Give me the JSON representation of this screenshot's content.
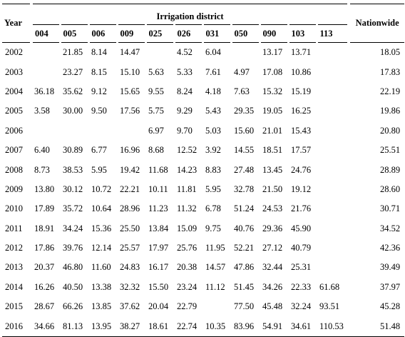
{
  "table": {
    "year_header": "Year",
    "group_header": "Irrigation district",
    "nationwide_header": "Nationwide",
    "district_headers": [
      "004",
      "005",
      "006",
      "009",
      "025",
      "026",
      "031",
      "050",
      "090",
      "103",
      "113"
    ],
    "rows": [
      {
        "year": "2002",
        "values": [
          "",
          "21.85",
          "8.14",
          "14.47",
          "",
          "4.52",
          "6.04",
          "",
          "13.17",
          "13.71",
          ""
        ],
        "nationwide": "18.05"
      },
      {
        "year": "2003",
        "values": [
          "",
          "23.27",
          "8.15",
          "15.10",
          "5.63",
          "5.33",
          "7.61",
          "4.97",
          "17.08",
          "10.86",
          ""
        ],
        "nationwide": "17.83"
      },
      {
        "year": "2004",
        "values": [
          "36.18",
          "35.62",
          "9.12",
          "15.65",
          "9.55",
          "8.24",
          "4.18",
          "7.63",
          "15.32",
          "15.19",
          ""
        ],
        "nationwide": "22.19"
      },
      {
        "year": "2005",
        "values": [
          "3.58",
          "30.00",
          "9.50",
          "17.56",
          "5.75",
          "9.29",
          "5.43",
          "29.35",
          "19.05",
          "16.25",
          ""
        ],
        "nationwide": "19.86"
      },
      {
        "year": "2006",
        "values": [
          "",
          "",
          "",
          "",
          "6.97",
          "9.70",
          "5.03",
          "15.60",
          "21.01",
          "15.43",
          ""
        ],
        "nationwide": "20.80"
      },
      {
        "year": "2007",
        "values": [
          "6.40",
          "30.89",
          "6.77",
          "16.96",
          "8.68",
          "12.52",
          "3.92",
          "14.55",
          "18.51",
          "17.57",
          ""
        ],
        "nationwide": "25.51"
      },
      {
        "year": "2008",
        "values": [
          "8.73",
          "38.53",
          "5.95",
          "19.42",
          "11.68",
          "14.23",
          "8.83",
          "27.48",
          "13.45",
          "24.76",
          ""
        ],
        "nationwide": "28.89"
      },
      {
        "year": "2009",
        "values": [
          "13.80",
          "30.12",
          "10.72",
          "22.21",
          "10.11",
          "11.81",
          "5.95",
          "32.78",
          "21.50",
          "19.12",
          ""
        ],
        "nationwide": "28.60"
      },
      {
        "year": "2010",
        "values": [
          "17.89",
          "35.72",
          "10.64",
          "28.96",
          "11.23",
          "11.32",
          "6.78",
          "51.24",
          "24.53",
          "21.76",
          ""
        ],
        "nationwide": "30.71"
      },
      {
        "year": "2011",
        "values": [
          "18.91",
          "34.24",
          "15.36",
          "25.50",
          "13.84",
          "15.09",
          "9.75",
          "40.76",
          "29.36",
          "45.90",
          ""
        ],
        "nationwide": "34.52"
      },
      {
        "year": "2012",
        "values": [
          "17.86",
          "39.76",
          "12.14",
          "25.57",
          "17.97",
          "25.76",
          "11.95",
          "52.21",
          "27.12",
          "40.79",
          ""
        ],
        "nationwide": "42.36"
      },
      {
        "year": "2013",
        "values": [
          "20.37",
          "46.80",
          "11.60",
          "24.83",
          "16.17",
          "20.38",
          "14.57",
          "47.86",
          "32.44",
          "25.31",
          ""
        ],
        "nationwide": "39.49"
      },
      {
        "year": "2014",
        "values": [
          "16.26",
          "40.50",
          "13.38",
          "32.32",
          "15.50",
          "23.24",
          "11.12",
          "51.45",
          "34.26",
          "22.33",
          "61.68"
        ],
        "nationwide": "37.97"
      },
      {
        "year": "2015",
        "values": [
          "28.67",
          "66.26",
          "13.85",
          "37.62",
          "20.04",
          "22.79",
          "",
          "77.50",
          "45.48",
          "32.24",
          "93.51"
        ],
        "nationwide": "45.28"
      },
      {
        "year": "2016",
        "values": [
          "34.66",
          "81.13",
          "13.95",
          "38.27",
          "18.61",
          "22.74",
          "10.35",
          "83.96",
          "54.91",
          "34.61",
          "110.53"
        ],
        "nationwide": "51.48"
      }
    ]
  }
}
